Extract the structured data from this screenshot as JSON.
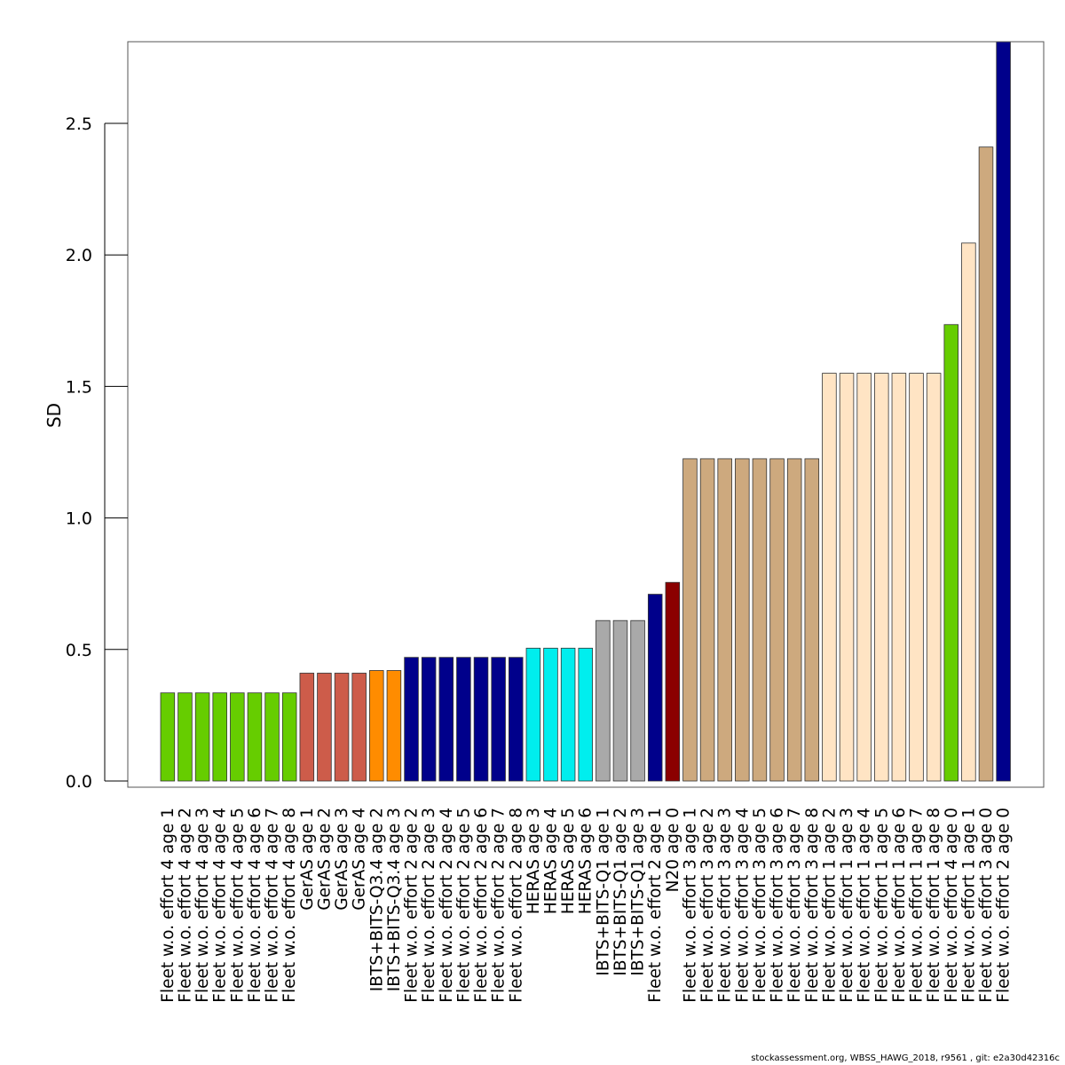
{
  "chart_data": {
    "type": "bar",
    "title": "",
    "xlabel": "",
    "ylabel": "SD",
    "ylim": [
      0,
      2.8
    ],
    "yticks": [
      0.0,
      0.5,
      1.0,
      1.5,
      2.0,
      2.5
    ],
    "ytick_labels": [
      "0.0",
      "0.5",
      "1.0",
      "1.5",
      "2.0",
      "2.5"
    ],
    "grid": false,
    "legend": "none",
    "categories": [
      "Fleet w.o. effort 4 age 1",
      "Fleet w.o. effort 4 age 2",
      "Fleet w.o. effort 4 age 3",
      "Fleet w.o. effort 4 age 4",
      "Fleet w.o. effort 4 age 5",
      "Fleet w.o. effort 4 age 6",
      "Fleet w.o. effort 4 age 7",
      "Fleet w.o. effort 4 age 8",
      "GerAS age 1",
      "GerAS age 2",
      "GerAS age 3",
      "GerAS age 4",
      "IBTS+BITS-Q3.4 age 2",
      "IBTS+BITS-Q3.4 age 3",
      "Fleet w.o. effort 2 age 2",
      "Fleet w.o. effort 2 age 3",
      "Fleet w.o. effort 2 age 4",
      "Fleet w.o. effort 2 age 5",
      "Fleet w.o. effort 2 age 6",
      "Fleet w.o. effort 2 age 7",
      "Fleet w.o. effort 2 age 8",
      "HERAS age 3",
      "HERAS age 4",
      "HERAS age 5",
      "HERAS age 6",
      "IBTS+BITS-Q1 age 1",
      "IBTS+BITS-Q1 age 2",
      "IBTS+BITS-Q1 age 3",
      "Fleet w.o. effort 2 age 1",
      "N20 age 0",
      "Fleet w.o. effort 3 age 1",
      "Fleet w.o. effort 3 age 2",
      "Fleet w.o. effort 3 age 3",
      "Fleet w.o. effort 3 age 4",
      "Fleet w.o. effort 3 age 5",
      "Fleet w.o. effort 3 age 6",
      "Fleet w.o. effort 3 age 7",
      "Fleet w.o. effort 3 age 8",
      "Fleet w.o. effort 1 age 2",
      "Fleet w.o. effort 1 age 3",
      "Fleet w.o. effort 1 age 4",
      "Fleet w.o. effort 1 age 5",
      "Fleet w.o. effort 1 age 6",
      "Fleet w.o. effort 1 age 7",
      "Fleet w.o. effort 1 age 8",
      "Fleet w.o. effort 4 age 0",
      "Fleet w.o. effort 1 age 1",
      "Fleet w.o. effort 3 age 0",
      "Fleet w.o. effort 2 age 0"
    ],
    "values": [
      0.335,
      0.335,
      0.335,
      0.335,
      0.335,
      0.335,
      0.335,
      0.335,
      0.41,
      0.41,
      0.41,
      0.41,
      0.42,
      0.42,
      0.47,
      0.47,
      0.47,
      0.47,
      0.47,
      0.47,
      0.47,
      0.505,
      0.505,
      0.505,
      0.505,
      0.61,
      0.61,
      0.61,
      0.71,
      0.755,
      1.225,
      1.225,
      1.225,
      1.225,
      1.225,
      1.225,
      1.225,
      1.225,
      1.55,
      1.55,
      1.55,
      1.55,
      1.55,
      1.55,
      1.55,
      1.735,
      2.045,
      2.41,
      2.82
    ],
    "bar_colors": [
      "#66cd00",
      "#66cd00",
      "#66cd00",
      "#66cd00",
      "#66cd00",
      "#66cd00",
      "#66cd00",
      "#66cd00",
      "#cd5c4a",
      "#cd5c4a",
      "#cd5c4a",
      "#cd5c4a",
      "#ff8c00",
      "#ff8c00",
      "#00008b",
      "#00008b",
      "#00008b",
      "#00008b",
      "#00008b",
      "#00008b",
      "#00008b",
      "#00eeee",
      "#00eeee",
      "#00eeee",
      "#00eeee",
      "#a9a9a9",
      "#a9a9a9",
      "#a9a9a9",
      "#00008b",
      "#8b0000",
      "#cda97e",
      "#cda97e",
      "#cda97e",
      "#cda97e",
      "#cda97e",
      "#cda97e",
      "#cda97e",
      "#cda97e",
      "#ffe4c4",
      "#ffe4c4",
      "#ffe4c4",
      "#ffe4c4",
      "#ffe4c4",
      "#ffe4c4",
      "#ffe4c4",
      "#66cd00",
      "#ffe4c4",
      "#cda97e",
      "#00008b"
    ]
  },
  "footer": {
    "text": "stockassessment.org, WBSS_HAWG_2018, r9561 , git: e2a30d42316c"
  }
}
